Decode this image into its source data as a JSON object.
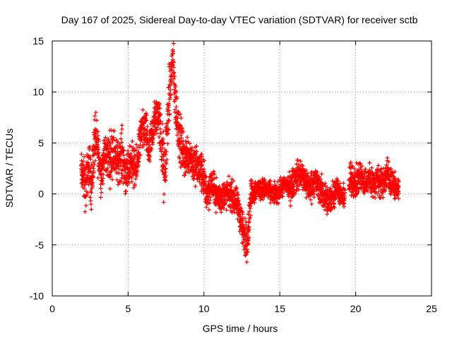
{
  "chart_data": {
    "type": "scatter",
    "title": "Day 167 of 2025, Sidereal Day-to-day VTEC variation (SDTVAR) for receiver sctb",
    "xlabel": "GPS time / hours",
    "ylabel": "SDTVAR / TECUs",
    "xlim": [
      0,
      25
    ],
    "ylim": [
      -10,
      15
    ],
    "xticks": [
      0,
      5,
      10,
      15,
      20,
      25
    ],
    "yticks": [
      -10,
      -5,
      0,
      5,
      10,
      15
    ],
    "xtick_labels": [
      "0",
      "5",
      "10",
      "15",
      "20",
      "25"
    ],
    "ytick_labels": [
      "-10",
      "-5",
      "0",
      "5",
      "10",
      "15"
    ],
    "grid": true,
    "marker": "+",
    "series_color": "#ff0000",
    "profile": [
      [
        2.0,
        2.0,
        2.0
      ],
      [
        2.2,
        0.5,
        2.5
      ],
      [
        2.4,
        3.0,
        2.0
      ],
      [
        2.6,
        1.0,
        3.0
      ],
      [
        2.8,
        5.5,
        2.5
      ],
      [
        3.0,
        4.5,
        2.5
      ],
      [
        3.2,
        2.0,
        2.0
      ],
      [
        3.5,
        4.0,
        2.0
      ],
      [
        3.8,
        3.5,
        2.5
      ],
      [
        4.0,
        4.5,
        2.5
      ],
      [
        4.3,
        3.0,
        2.0
      ],
      [
        4.6,
        4.0,
        2.5
      ],
      [
        4.9,
        1.5,
        2.0
      ],
      [
        5.2,
        3.5,
        2.0
      ],
      [
        5.5,
        2.0,
        2.0
      ],
      [
        5.8,
        5.5,
        2.0
      ],
      [
        6.1,
        6.5,
        2.0
      ],
      [
        6.4,
        4.0,
        2.0
      ],
      [
        6.7,
        7.0,
        2.0
      ],
      [
        7.0,
        8.0,
        2.0
      ],
      [
        7.2,
        5.0,
        3.0
      ],
      [
        7.4,
        1.5,
        3.5
      ],
      [
        7.6,
        7.0,
        3.0
      ],
      [
        7.8,
        11.0,
        3.0
      ],
      [
        7.95,
        13.5,
        2.0
      ],
      [
        8.1,
        9.0,
        2.5
      ],
      [
        8.4,
        5.5,
        2.5
      ],
      [
        8.7,
        3.5,
        2.0
      ],
      [
        9.0,
        4.0,
        2.0
      ],
      [
        9.3,
        3.0,
        2.0
      ],
      [
        9.6,
        2.5,
        2.0
      ],
      [
        9.9,
        2.0,
        2.0
      ],
      [
        10.2,
        0.0,
        2.0
      ],
      [
        10.5,
        1.0,
        1.5
      ],
      [
        10.8,
        0.0,
        1.5
      ],
      [
        11.1,
        -0.5,
        1.5
      ],
      [
        11.4,
        0.0,
        1.5
      ],
      [
        11.7,
        0.0,
        1.5
      ],
      [
        12.0,
        -0.5,
        1.5
      ],
      [
        12.3,
        -1.5,
        1.5
      ],
      [
        12.5,
        -3.0,
        2.0
      ],
      [
        12.7,
        -4.5,
        2.0
      ],
      [
        12.9,
        -4.0,
        2.0
      ],
      [
        13.1,
        0.0,
        1.5
      ],
      [
        13.5,
        0.5,
        1.0
      ],
      [
        13.8,
        0.5,
        1.0
      ],
      [
        14.1,
        0.5,
        1.0
      ],
      [
        14.5,
        0.0,
        1.0
      ],
      [
        14.8,
        0.0,
        1.0
      ],
      [
        15.1,
        0.5,
        1.0
      ],
      [
        15.4,
        1.0,
        1.0
      ],
      [
        15.7,
        0.5,
        1.5
      ],
      [
        16.0,
        1.5,
        1.5
      ],
      [
        16.3,
        2.0,
        1.5
      ],
      [
        16.6,
        1.5,
        1.5
      ],
      [
        17.0,
        0.5,
        1.5
      ],
      [
        17.3,
        1.5,
        1.5
      ],
      [
        17.6,
        0.5,
        1.5
      ],
      [
        17.9,
        0.0,
        1.5
      ],
      [
        18.2,
        -1.0,
        1.5
      ],
      [
        18.5,
        0.0,
        1.5
      ],
      [
        18.8,
        0.5,
        1.0
      ],
      [
        19.1,
        -0.5,
        1.0
      ],
      [
        19.4,
        0.0,
        1.5
      ],
      [
        19.7,
        1.5,
        1.5
      ],
      [
        20.0,
        1.0,
        1.5
      ],
      [
        20.3,
        2.0,
        1.5
      ],
      [
        20.6,
        1.0,
        1.5
      ],
      [
        20.9,
        1.5,
        1.5
      ],
      [
        21.2,
        1.0,
        1.5
      ],
      [
        21.5,
        1.5,
        1.5
      ],
      [
        21.8,
        1.0,
        1.5
      ],
      [
        22.1,
        2.0,
        1.5
      ],
      [
        22.4,
        1.0,
        1.5
      ],
      [
        22.7,
        0.5,
        1.0
      ],
      [
        22.85,
        0.5,
        1.0
      ]
    ],
    "points_per_hour": 150,
    "x_start": 1.9,
    "x_end": 22.85
  }
}
